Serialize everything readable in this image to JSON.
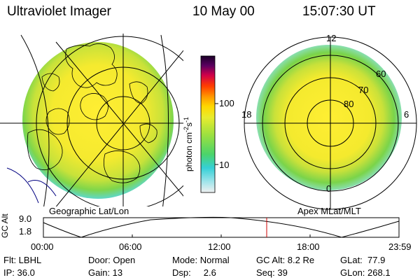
{
  "header": {
    "instrument": "Ultraviolet Imager",
    "date": "10 May 00",
    "time": "15:07:30 UT"
  },
  "left_panel": {
    "caption": "Geographic Lat/Lon"
  },
  "right_panel": {
    "caption": "Apex MLat/MLT",
    "mlt_labels": [
      "12",
      "18",
      "6",
      "0"
    ],
    "lat_labels": [
      "60",
      "70",
      "80"
    ]
  },
  "colorbar": {
    "unit": "photon cm",
    "unit_exp1": "-2",
    "unit_mid": "s",
    "unit_exp2": "-1",
    "ticks": [
      "100",
      "10"
    ]
  },
  "timeline": {
    "ylabel": "GC Alt",
    "ticks": [
      "9.0",
      "1.8"
    ],
    "x_labels": [
      "00:00",
      "06:00",
      "12:00",
      "18:00",
      "23:59"
    ],
    "cursor_time": "15:07:30"
  },
  "info": {
    "filter": "Flt: LBHL",
    "ip": "IP: 36.0",
    "door": "Door: Open",
    "gain": "Gain: 13",
    "mode": "Mode: Normal",
    "dsp": "Dsp:     2.6",
    "gc_alt": "GC Alt: 8.2 Re",
    "seq": "Seq: 39",
    "glat": "GLat:  77.9",
    "glon": "GLon: 268.1"
  },
  "colors": {
    "map_lines": "#000000",
    "cursor": "#cc0000",
    "coast_lines": "#000080"
  }
}
